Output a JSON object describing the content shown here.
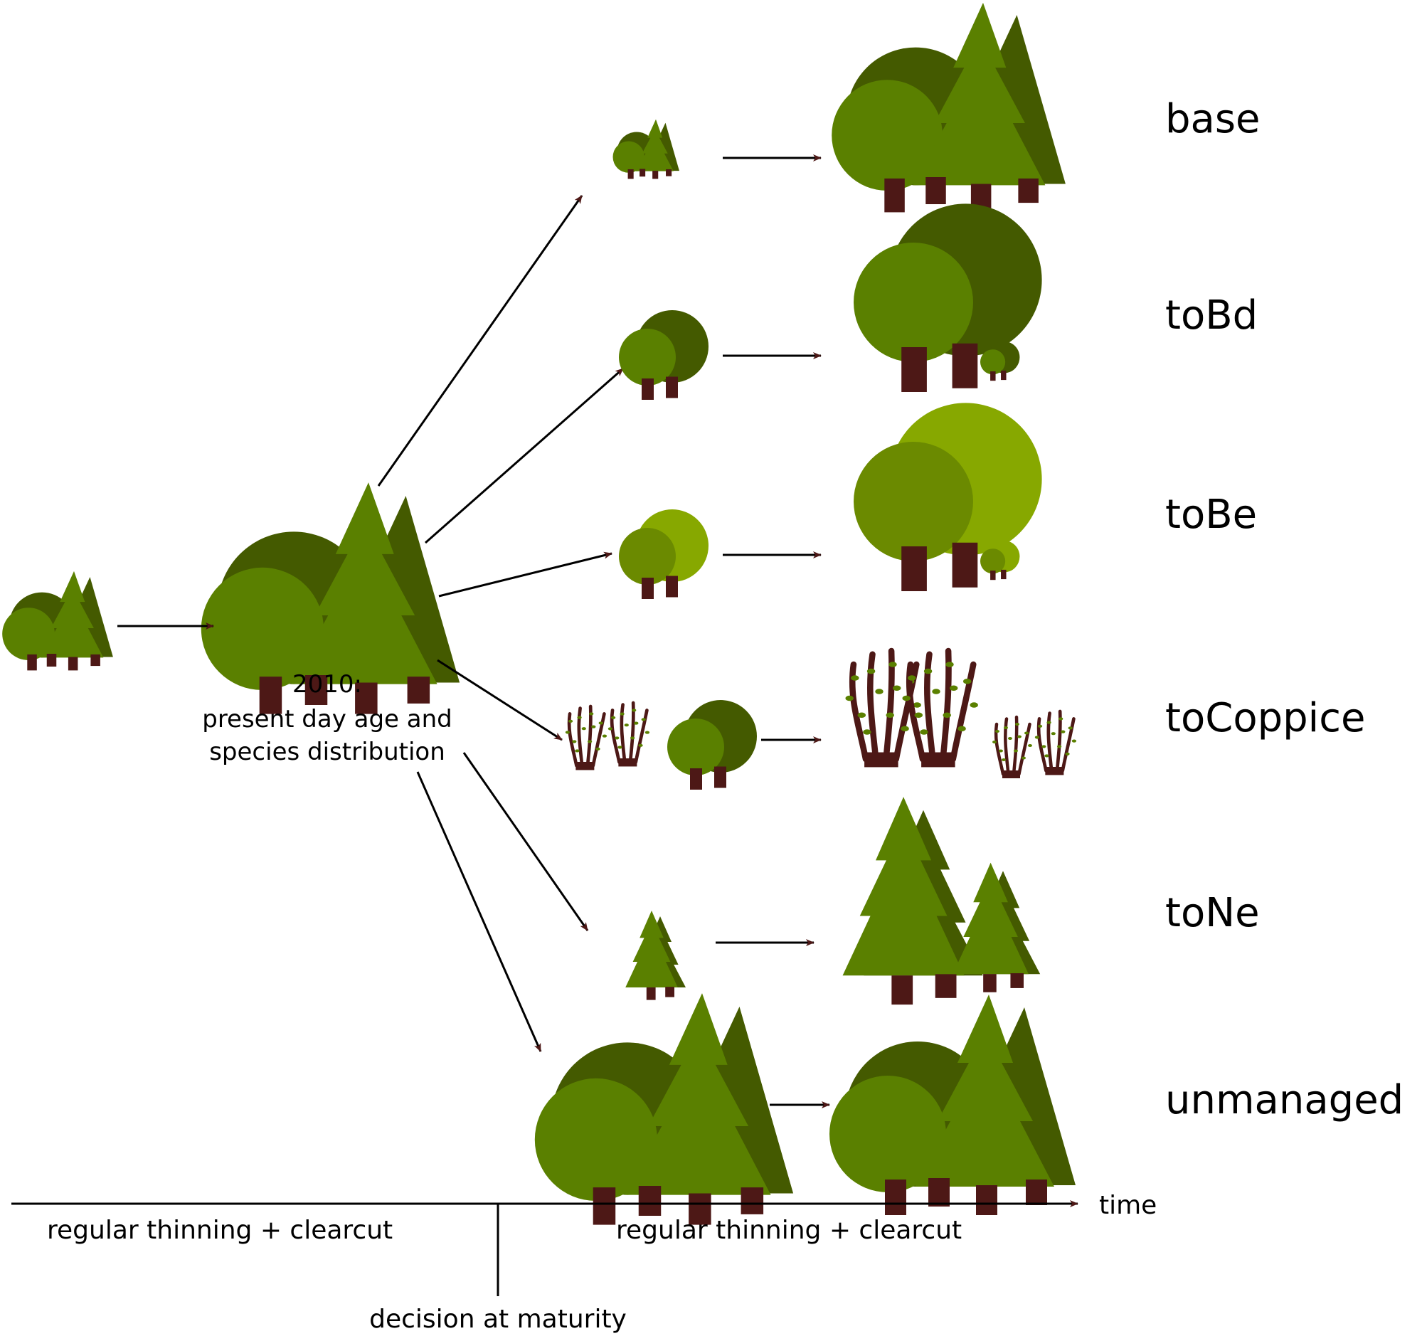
{
  "colors": {
    "dark_green": "#445a00",
    "mid_green": "#5a8000",
    "olive_green": "#6b8a00",
    "light_green": "#87a800",
    "trunk": "#4d1816",
    "arrow_line": "#000000",
    "arrow_head": "#4d1816"
  },
  "start_note": {
    "line1": "2010:",
    "line2": "present day age and",
    "line3": "species distribution"
  },
  "scenarios": [
    {
      "id": "base",
      "label": "base"
    },
    {
      "id": "toBd",
      "label": "toBd"
    },
    {
      "id": "toBe",
      "label": "toBe"
    },
    {
      "id": "toCoppice",
      "label": "toCoppice"
    },
    {
      "id": "toNe",
      "label": "toNe"
    },
    {
      "id": "unmanaged",
      "label": "unmanaged"
    }
  ],
  "timeline": {
    "axis_label": "time",
    "phase_before": "regular thinning + clearcut",
    "phase_after": "regular thinning + clearcut",
    "decision": "decision at maturity"
  },
  "icons": [
    "mixed-stand-icon",
    "broadleaf-stand-icon",
    "beech-stand-icon",
    "coppice-icon",
    "conifer-stand-icon"
  ]
}
